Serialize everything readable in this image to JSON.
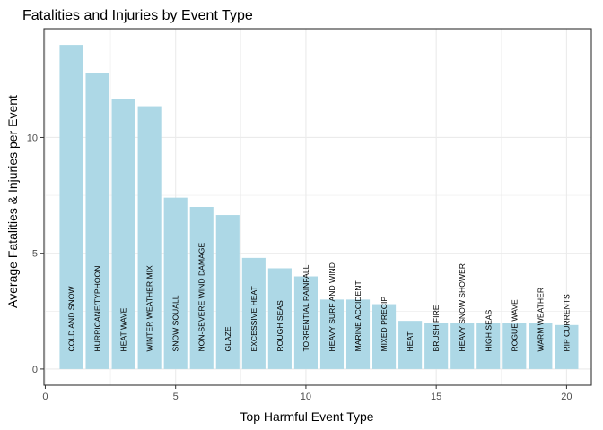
{
  "chart_data": {
    "type": "bar",
    "title": "Fatalities and Injuries by Event Type",
    "xlabel": "Top Harmful Event Type",
    "ylabel": "Average Fatalities & Injuries per Event",
    "xlim": [
      -0.05,
      20.95
    ],
    "ylim": [
      -0.7,
      14.7
    ],
    "x_ticks": [
      0,
      5,
      10,
      15,
      20
    ],
    "y_ticks": [
      0,
      5,
      10
    ],
    "grid": true,
    "legend": "none",
    "bar_color": "#add8e6",
    "panel_border_color": "#333333",
    "grid_color": "#ebebeb",
    "x": [
      1,
      2,
      3,
      4,
      5,
      6,
      7,
      8,
      9,
      10,
      11,
      12,
      13,
      14,
      15,
      16,
      17,
      18,
      19,
      20
    ],
    "categories": [
      "COLD AND SNOW",
      "HURRICANE/TYPHOON",
      "HEAT WAVE",
      "WINTER WEATHER MIX",
      "SNOW SQUALL",
      "NON-SEVERE WIND DAMAGE",
      "GLAZE",
      "EXCESSIVE HEAT",
      "ROUGH SEAS",
      "TORRENTIAL RAINFALL",
      "HEAVY SURF AND WIND",
      "MARINE ACCIDENT",
      "MIXED PRECIP",
      "HEAT",
      "BRUSH FIRE",
      "HEAVY SNOW SHOWER",
      "HIGH SEAS",
      "ROGUE WAVE",
      "WARM WEATHER",
      "RIP CURRENTS"
    ],
    "values": [
      14.0,
      12.8,
      11.65,
      11.35,
      7.4,
      7.0,
      6.65,
      4.8,
      4.35,
      4.0,
      3.0,
      3.0,
      2.8,
      2.08,
      2.0,
      2.0,
      2.0,
      2.0,
      2.0,
      1.9
    ]
  }
}
